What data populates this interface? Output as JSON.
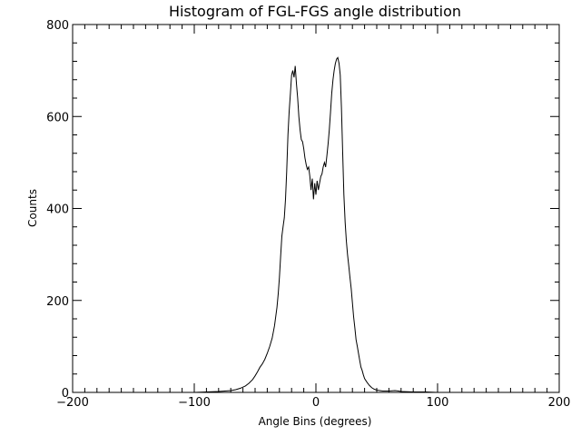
{
  "chart_data": {
    "type": "line",
    "title": "Histogram of FGL-FGS angle distribution",
    "xlabel": "Angle Bins (degrees)",
    "ylabel": "Counts",
    "xlim": [
      -200,
      200
    ],
    "ylim": [
      0,
      800
    ],
    "xticks": [
      -200,
      -100,
      0,
      100,
      200
    ],
    "yticks": [
      0,
      200,
      400,
      600,
      800
    ],
    "grid": false,
    "series": [
      {
        "values": [
          [
            -200,
            0
          ],
          [
            -100,
            0
          ],
          [
            -90,
            1
          ],
          [
            -80,
            2
          ],
          [
            -70,
            4
          ],
          [
            -66,
            6
          ],
          [
            -62,
            9
          ],
          [
            -58,
            14
          ],
          [
            -55,
            20
          ],
          [
            -52,
            28
          ],
          [
            -50,
            36
          ],
          [
            -48,
            45
          ],
          [
            -46,
            55
          ],
          [
            -44,
            62
          ],
          [
            -42,
            72
          ],
          [
            -40,
            85
          ],
          [
            -38,
            100
          ],
          [
            -36,
            118
          ],
          [
            -34,
            145
          ],
          [
            -32,
            185
          ],
          [
            -31,
            215
          ],
          [
            -30,
            250
          ],
          [
            -29,
            295
          ],
          [
            -28,
            340
          ],
          [
            -27,
            360
          ],
          [
            -26,
            380
          ],
          [
            -25,
            420
          ],
          [
            -24,
            480
          ],
          [
            -23,
            560
          ],
          [
            -22,
            610
          ],
          [
            -21,
            650
          ],
          [
            -20,
            690
          ],
          [
            -19,
            700
          ],
          [
            -18,
            685
          ],
          [
            -17,
            710
          ],
          [
            -16,
            670
          ],
          [
            -15,
            640
          ],
          [
            -14,
            600
          ],
          [
            -13,
            570
          ],
          [
            -12,
            550
          ],
          [
            -11,
            545
          ],
          [
            -10,
            530
          ],
          [
            -9,
            510
          ],
          [
            -8,
            495
          ],
          [
            -7,
            485
          ],
          [
            -6,
            490
          ],
          [
            -5,
            470
          ],
          [
            -4,
            440
          ],
          [
            -3,
            465
          ],
          [
            -2,
            420
          ],
          [
            -1,
            455
          ],
          [
            0,
            430
          ],
          [
            1,
            460
          ],
          [
            2,
            440
          ],
          [
            3,
            455
          ],
          [
            4,
            470
          ],
          [
            5,
            475
          ],
          [
            6,
            490
          ],
          [
            7,
            500
          ],
          [
            8,
            490
          ],
          [
            9,
            515
          ],
          [
            10,
            540
          ],
          [
            11,
            570
          ],
          [
            12,
            610
          ],
          [
            13,
            650
          ],
          [
            14,
            680
          ],
          [
            15,
            700
          ],
          [
            16,
            715
          ],
          [
            17,
            725
          ],
          [
            18,
            728
          ],
          [
            19,
            715
          ],
          [
            20,
            690
          ],
          [
            21,
            620
          ],
          [
            22,
            520
          ],
          [
            23,
            430
          ],
          [
            24,
            370
          ],
          [
            25,
            330
          ],
          [
            26,
            300
          ],
          [
            27,
            275
          ],
          [
            28,
            250
          ],
          [
            29,
            225
          ],
          [
            30,
            195
          ],
          [
            31,
            165
          ],
          [
            32,
            140
          ],
          [
            33,
            115
          ],
          [
            34,
            100
          ],
          [
            35,
            85
          ],
          [
            36,
            70
          ],
          [
            37,
            55
          ],
          [
            38,
            48
          ],
          [
            39,
            38
          ],
          [
            40,
            30
          ],
          [
            42,
            22
          ],
          [
            44,
            15
          ],
          [
            46,
            10
          ],
          [
            48,
            7
          ],
          [
            50,
            5
          ],
          [
            55,
            3
          ],
          [
            60,
            3
          ],
          [
            65,
            4
          ],
          [
            68,
            3
          ],
          [
            70,
            2
          ],
          [
            80,
            1
          ],
          [
            90,
            1
          ],
          [
            100,
            0
          ],
          [
            200,
            0
          ]
        ]
      }
    ]
  }
}
